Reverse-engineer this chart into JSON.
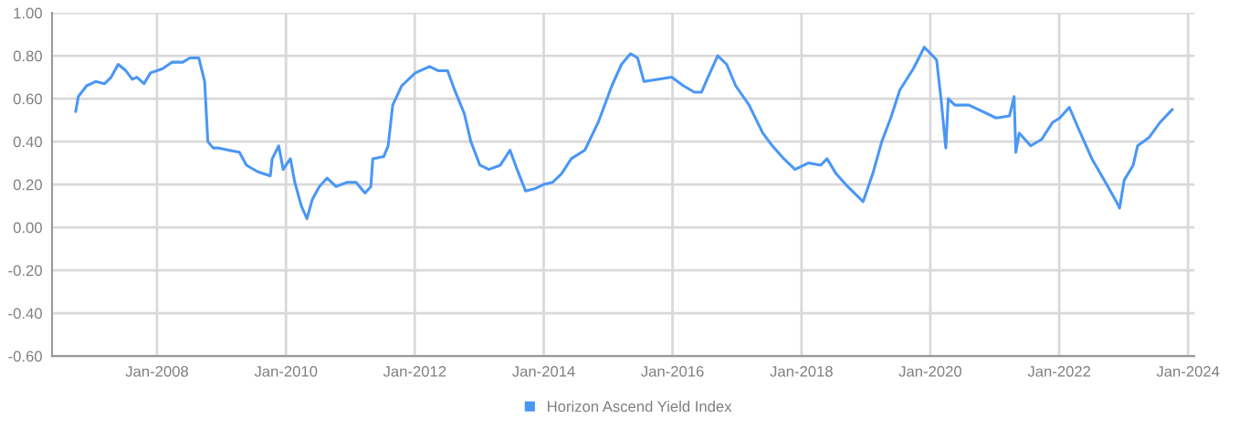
{
  "chart_data": {
    "type": "line",
    "legend": "bottom",
    "grid": true,
    "marker": "none",
    "line_style": "solid",
    "xlim": [
      "2006-05-16",
      "2024-02-06"
    ],
    "ylim": [
      -0.6,
      1.0
    ],
    "xticks": [
      {
        "value": "2008-01-01",
        "label": "Jan-2008"
      },
      {
        "value": "2010-01-01",
        "label": "Jan-2010"
      },
      {
        "value": "2012-01-01",
        "label": "Jan-2012"
      },
      {
        "value": "2014-01-01",
        "label": "Jan-2014"
      },
      {
        "value": "2016-01-01",
        "label": "Jan-2016"
      },
      {
        "value": "2018-01-01",
        "label": "Jan-2018"
      },
      {
        "value": "2020-01-01",
        "label": "Jan-2020"
      },
      {
        "value": "2022-01-01",
        "label": "Jan-2022"
      },
      {
        "value": "2024-01-01",
        "label": "Jan-2024"
      }
    ],
    "yticks": [
      {
        "value": -0.6,
        "label": "-0.60"
      },
      {
        "value": -0.4,
        "label": "-0.40"
      },
      {
        "value": -0.2,
        "label": "-0.20"
      },
      {
        "value": 0,
        "label": "0.00"
      },
      {
        "value": 0.2,
        "label": "0.20"
      },
      {
        "value": 0.4,
        "label": "0.40"
      },
      {
        "value": 0.6,
        "label": "0.60"
      },
      {
        "value": 0.8,
        "label": "0.80"
      },
      {
        "value": 1.0,
        "label": "1.00"
      }
    ],
    "x": [
      "2006-09-27",
      "2006-10-12",
      "2006-11-28",
      "2007-01-18",
      "2007-03-10",
      "2007-04-16",
      "2007-05-26",
      "2007-07-09",
      "2007-08-14",
      "2007-09-09",
      "2007-10-19",
      "2007-11-25",
      "2008-02-02",
      "2008-03-25",
      "2008-05-26",
      "2008-07-05",
      "2008-08-25",
      "2008-09-27",
      "2008-10-15",
      "2008-11-14",
      "2008-12-16",
      "2009-02-09",
      "2009-04-12",
      "2009-05-22",
      "2009-07-23",
      "2009-10-04",
      "2009-10-15",
      "2009-11-21",
      "2009-12-16",
      "2010-01-26",
      "2010-02-20",
      "2010-03-29",
      "2010-04-30",
      "2010-05-30",
      "2010-07-09",
      "2010-08-22",
      "2010-10-12",
      "2010-12-13",
      "2011-02-02",
      "2011-03-25",
      "2011-04-27",
      "2011-05-08",
      "2011-07-09",
      "2011-08-03",
      "2011-08-29",
      "2011-10-19",
      "2012-01-04",
      "2012-03-25",
      "2012-05-15",
      "2012-07-05",
      "2012-08-14",
      "2012-10-08",
      "2012-11-14",
      "2013-01-04",
      "2013-02-24",
      "2013-04-30",
      "2013-06-24",
      "2013-08-03",
      "2013-09-20",
      "2013-11-10",
      "2014-01-01",
      "2014-02-20",
      "2014-04-12",
      "2014-06-06",
      "2014-08-22",
      "2014-11-06",
      "2015-01-22",
      "2015-03-18",
      "2015-05-08",
      "2015-06-17",
      "2015-07-23",
      "2015-10-08",
      "2015-12-27",
      "2016-03-03",
      "2016-05-04",
      "2016-06-13",
      "2016-07-20",
      "2016-09-13",
      "2016-11-03",
      "2016-12-24",
      "2017-03-10",
      "2017-05-26",
      "2017-07-20",
      "2017-09-23",
      "2017-11-25",
      "2018-02-09",
      "2018-04-20",
      "2018-05-26",
      "2018-07-16",
      "2018-09-20",
      "2018-12-16",
      "2019-02-09",
      "2019-04-01",
      "2019-05-22",
      "2019-07-12",
      "2019-09-27",
      "2019-11-28",
      "2020-02-06",
      "2020-03-03",
      "2020-03-29",
      "2020-04-12",
      "2020-05-19",
      "2020-08-07",
      "2020-10-23",
      "2021-01-08",
      "2021-03-25",
      "2021-04-20",
      "2021-04-30",
      "2021-05-19",
      "2021-07-23",
      "2021-09-23",
      "2021-11-25",
      "2022-01-04",
      "2022-02-27",
      "2022-04-20",
      "2022-07-05",
      "2022-09-20",
      "2022-11-21",
      "2022-12-09",
      "2023-01-04",
      "2023-02-24",
      "2023-03-21",
      "2023-05-26",
      "2023-07-27",
      "2023-10-04"
    ],
    "series": [
      {
        "name": "Horizon Ascend Yield Index",
        "color": "#4a97f5",
        "values": [
          0.54,
          0.61,
          0.66,
          0.68,
          0.67,
          0.7,
          0.76,
          0.73,
          0.69,
          0.7,
          0.67,
          0.72,
          0.74,
          0.77,
          0.77,
          0.79,
          0.79,
          0.68,
          0.4,
          0.37,
          0.37,
          0.36,
          0.35,
          0.29,
          0.26,
          0.24,
          0.32,
          0.38,
          0.27,
          0.32,
          0.21,
          0.1,
          0.04,
          0.13,
          0.19,
          0.23,
          0.19,
          0.21,
          0.21,
          0.16,
          0.19,
          0.32,
          0.33,
          0.38,
          0.57,
          0.66,
          0.72,
          0.75,
          0.73,
          0.73,
          0.64,
          0.53,
          0.4,
          0.29,
          0.27,
          0.29,
          0.36,
          0.27,
          0.17,
          0.18,
          0.2,
          0.21,
          0.25,
          0.32,
          0.36,
          0.49,
          0.66,
          0.76,
          0.81,
          0.79,
          0.68,
          0.69,
          0.7,
          0.66,
          0.63,
          0.63,
          0.7,
          0.8,
          0.76,
          0.66,
          0.57,
          0.44,
          0.38,
          0.32,
          0.27,
          0.3,
          0.29,
          0.32,
          0.25,
          0.19,
          0.12,
          0.25,
          0.4,
          0.51,
          0.64,
          0.74,
          0.84,
          0.78,
          0.59,
          0.37,
          0.6,
          0.57,
          0.57,
          0.54,
          0.51,
          0.52,
          0.61,
          0.35,
          0.44,
          0.38,
          0.41,
          0.49,
          0.51,
          0.56,
          0.46,
          0.32,
          0.21,
          0.12,
          0.09,
          0.22,
          0.29,
          0.38,
          0.42,
          0.49,
          0.55
        ]
      }
    ]
  }
}
